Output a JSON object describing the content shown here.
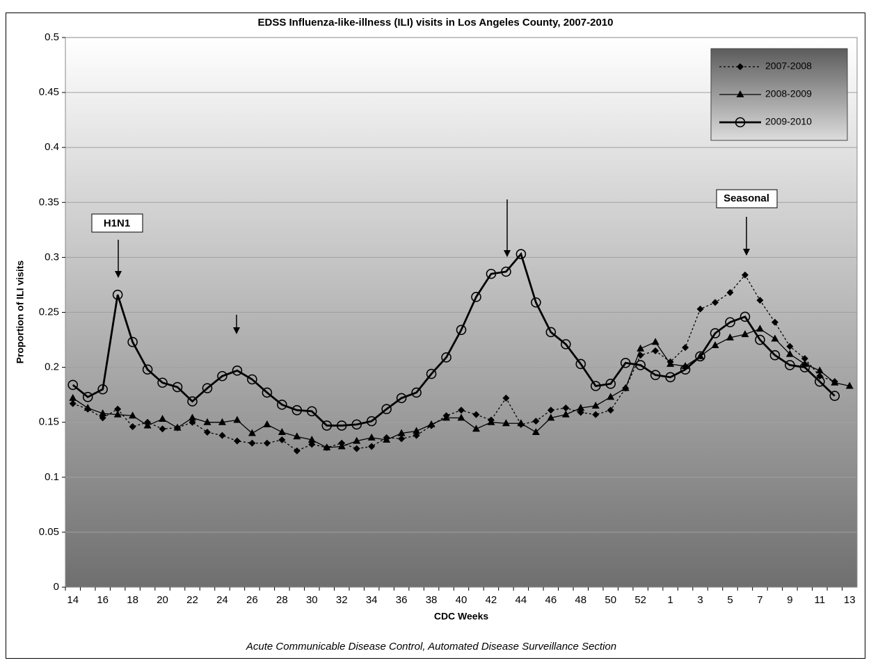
{
  "chart_data": {
    "type": "line",
    "title": "EDSS Influenza-like-illness (ILI) visits in Los Angeles County, 2007-2010",
    "x_label": "CDC Weeks",
    "y_label": "Proportion of ILI visits",
    "footnote": "Acute Communicable Disease Control, Automated Disease Surveillance Section",
    "categories": [
      "14",
      null,
      "16",
      null,
      "18",
      null,
      "20",
      null,
      "22",
      null,
      "24",
      null,
      "26",
      null,
      "28",
      null,
      "30",
      null,
      "32",
      null,
      "34",
      null,
      "36",
      null,
      "38",
      null,
      "40",
      null,
      "42",
      null,
      "44",
      null,
      "46",
      null,
      "48",
      null,
      "50",
      null,
      "52",
      null,
      "1",
      null,
      "3",
      null,
      "5",
      null,
      "7",
      null,
      "9",
      null,
      "11",
      null,
      "13"
    ],
    "ylim": [
      0,
      0.5
    ],
    "yticks": [
      0,
      0.05,
      0.1,
      0.15,
      0.2,
      0.25,
      0.3,
      0.35,
      0.4,
      0.45,
      0.5
    ],
    "grid": true,
    "legend": "top-right",
    "annotations": [
      "H1N1",
      "Seasonal"
    ],
    "series": [
      {
        "name": "2007-2008",
        "color": "#000000",
        "marker": "diamond",
        "line_style": "dotted",
        "values": [
          0.167,
          0.162,
          0.154,
          0.162,
          0.146,
          0.15,
          0.144,
          0.145,
          0.15,
          0.141,
          0.138,
          0.133,
          0.131,
          0.131,
          0.134,
          0.124,
          0.13,
          0.127,
          0.131,
          0.126,
          0.128,
          0.136,
          0.135,
          0.138,
          0.147,
          0.156,
          0.161,
          0.157,
          0.152,
          0.172,
          0.148,
          0.151,
          0.161,
          0.163,
          0.159,
          0.157,
          0.161,
          0.181,
          0.211,
          0.215,
          0.205,
          0.218,
          0.253,
          0.259,
          0.268,
          0.284,
          0.261,
          0.241,
          0.219,
          0.208,
          0.192,
          0.187,
          null
        ]
      },
      {
        "name": "2008-2009",
        "color": "#000000",
        "marker": "triangle",
        "line_style": "solid",
        "values": [
          0.172,
          0.163,
          0.158,
          0.157,
          0.156,
          0.147,
          0.153,
          0.145,
          0.154,
          0.15,
          0.15,
          0.152,
          0.14,
          0.148,
          0.141,
          0.137,
          0.134,
          0.127,
          0.128,
          0.133,
          0.136,
          0.134,
          0.14,
          0.142,
          0.148,
          0.154,
          0.154,
          0.144,
          0.15,
          0.149,
          0.149,
          0.141,
          0.154,
          0.157,
          0.163,
          0.165,
          0.173,
          0.181,
          0.217,
          0.223,
          0.203,
          0.201,
          0.21,
          0.22,
          0.227,
          0.23,
          0.235,
          0.226,
          0.212,
          0.203,
          0.197,
          0.186,
          0.183
        ]
      },
      {
        "name": "2009-2010",
        "color": "#000000",
        "marker": "circle",
        "line_style": "bold",
        "values": [
          0.184,
          0.173,
          0.18,
          0.266,
          0.223,
          0.198,
          0.186,
          0.182,
          0.169,
          0.181,
          0.192,
          0.197,
          0.189,
          0.177,
          0.166,
          0.161,
          0.16,
          0.147,
          0.147,
          0.148,
          0.151,
          0.162,
          0.172,
          0.177,
          0.194,
          0.209,
          0.234,
          0.264,
          0.285,
          0.287,
          0.303,
          0.259,
          0.232,
          0.221,
          0.203,
          0.183,
          0.185,
          0.204,
          0.202,
          0.193,
          0.191,
          0.198,
          0.21,
          0.231,
          0.241,
          0.246,
          0.225,
          0.211,
          0.202,
          0.2,
          0.187,
          0.174,
          null
        ]
      }
    ]
  }
}
